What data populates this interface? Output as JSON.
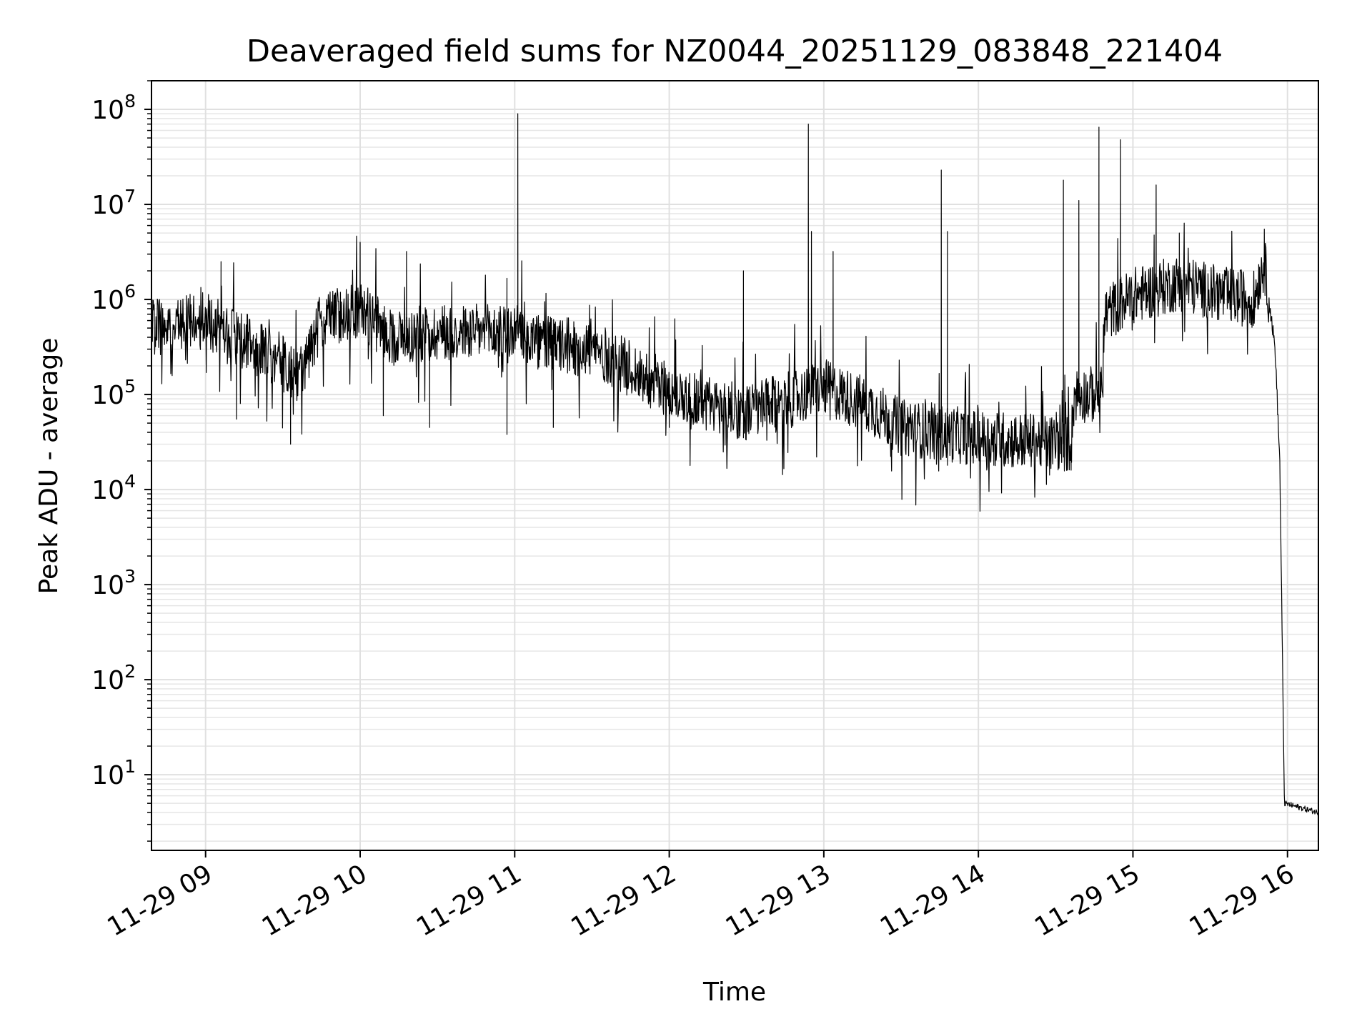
{
  "chart_data": {
    "type": "line",
    "title": "Deaveraged field sums for NZ0044_20251129_083848_221404",
    "xlabel": "Time",
    "ylabel": "Peak ADU - average",
    "x_range_hours": [
      8.65,
      16.2
    ],
    "ylim": [
      1.6,
      200000000
    ],
    "yscale": "log",
    "grid": true,
    "x_ticks": [
      {
        "hour": 9,
        "label": "11-29 09"
      },
      {
        "hour": 10,
        "label": "11-29 10"
      },
      {
        "hour": 11,
        "label": "11-29 11"
      },
      {
        "hour": 12,
        "label": "11-29 12"
      },
      {
        "hour": 13,
        "label": "11-29 13"
      },
      {
        "hour": 14,
        "label": "11-29 14"
      },
      {
        "hour": 15,
        "label": "11-29 15"
      },
      {
        "hour": 16,
        "label": "11-29 16"
      }
    ],
    "y_ticks": [
      {
        "value": 10,
        "base": "10",
        "exp": "1"
      },
      {
        "value": 100,
        "base": "10",
        "exp": "2"
      },
      {
        "value": 1000,
        "base": "10",
        "exp": "3"
      },
      {
        "value": 10000,
        "base": "10",
        "exp": "4"
      },
      {
        "value": 100000,
        "base": "10",
        "exp": "5"
      },
      {
        "value": 1000000,
        "base": "10",
        "exp": "6"
      },
      {
        "value": 10000000,
        "base": "10",
        "exp": "7"
      },
      {
        "value": 100000000,
        "base": "10",
        "exp": "8"
      }
    ],
    "series": [
      {
        "name": "Peak ADU - average",
        "color": "#000000",
        "baseline": [
          [
            8.65,
            500000
          ],
          [
            9.0,
            600000
          ],
          [
            9.2,
            400000
          ],
          [
            9.45,
            250000
          ],
          [
            9.6,
            150000
          ],
          [
            9.75,
            600000
          ],
          [
            10.0,
            800000
          ],
          [
            10.2,
            400000
          ],
          [
            10.5,
            450000
          ],
          [
            11.0,
            450000
          ],
          [
            11.15,
            350000
          ],
          [
            11.5,
            300000
          ],
          [
            11.8,
            170000
          ],
          [
            12.0,
            110000
          ],
          [
            12.3,
            75000
          ],
          [
            12.5,
            65000
          ],
          [
            12.8,
            90000
          ],
          [
            13.0,
            120000
          ],
          [
            13.3,
            75000
          ],
          [
            13.5,
            45000
          ],
          [
            14.0,
            35000
          ],
          [
            14.6,
            30000
          ],
          [
            14.62,
            100000
          ],
          [
            14.8,
            100000
          ],
          [
            14.82,
            700000
          ],
          [
            15.0,
            1100000
          ],
          [
            15.3,
            1500000
          ],
          [
            15.6,
            1100000
          ],
          [
            15.78,
            1000000
          ],
          [
            15.85,
            2500000
          ],
          [
            15.92,
            300000
          ],
          [
            15.95,
            20000
          ],
          [
            15.98,
            5
          ],
          [
            16.2,
            4
          ]
        ],
        "spikes": [
          [
            9.1,
            2500000
          ],
          [
            10.0,
            4000000
          ],
          [
            10.3,
            3200000
          ],
          [
            11.02,
            90000000
          ],
          [
            12.48,
            2000000
          ],
          [
            12.9,
            70000000
          ],
          [
            12.92,
            5200000
          ],
          [
            13.06,
            3200000
          ],
          [
            13.76,
            23000000
          ],
          [
            13.8,
            5200000
          ],
          [
            14.55,
            18000000
          ],
          [
            14.65,
            11000000
          ],
          [
            14.78,
            65000000
          ],
          [
            14.92,
            48000000
          ],
          [
            15.15,
            16000000
          ],
          [
            15.3,
            5000000
          ],
          [
            15.85,
            5500000
          ]
        ],
        "dips": [
          [
            9.2,
            55000
          ],
          [
            9.55,
            30000
          ],
          [
            10.15,
            60000
          ],
          [
            10.45,
            45000
          ],
          [
            10.95,
            38000
          ],
          [
            11.25,
            45000
          ],
          [
            12.0,
            45000
          ],
          [
            12.45,
            35000
          ],
          [
            13.8,
            18000
          ],
          [
            14.1,
            18000
          ],
          [
            14.6,
            16000
          ]
        ]
      }
    ]
  }
}
